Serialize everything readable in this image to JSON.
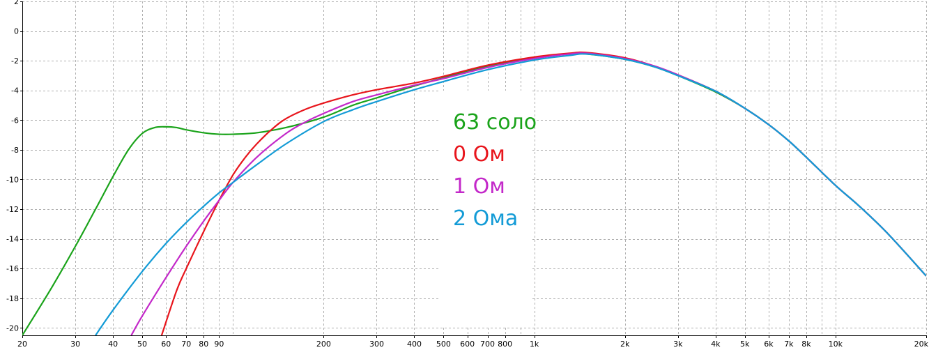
{
  "chart_data": {
    "type": "line",
    "title": "",
    "xlabel": "",
    "ylabel": "",
    "x_scale": "log",
    "xlim": [
      20,
      20000
    ],
    "ylim": [
      -20.5,
      2
    ],
    "grid": true,
    "legend_placement": "center",
    "x_ticks": [
      {
        "value": 20,
        "label": "20"
      },
      {
        "value": 30,
        "label": "30"
      },
      {
        "value": 40,
        "label": "40"
      },
      {
        "value": 50,
        "label": "50"
      },
      {
        "value": 60,
        "label": "60"
      },
      {
        "value": 70,
        "label": "70"
      },
      {
        "value": 80,
        "label": "80"
      },
      {
        "value": 90,
        "label": "90"
      },
      {
        "value": 200,
        "label": "200"
      },
      {
        "value": 300,
        "label": "300"
      },
      {
        "value": 400,
        "label": "400"
      },
      {
        "value": 500,
        "label": "500"
      },
      {
        "value": 600,
        "label": "600"
      },
      {
        "value": 700,
        "label": "700"
      },
      {
        "value": 800,
        "label": "800"
      },
      {
        "value": 1000,
        "label": "1k"
      },
      {
        "value": 2000,
        "label": "2k"
      },
      {
        "value": 3000,
        "label": "3k"
      },
      {
        "value": 4000,
        "label": "4k"
      },
      {
        "value": 5000,
        "label": "5k"
      },
      {
        "value": 6000,
        "label": "6k"
      },
      {
        "value": 7000,
        "label": "7k"
      },
      {
        "value": 8000,
        "label": "8k"
      },
      {
        "value": 10000,
        "label": "10k"
      },
      {
        "value": 20000,
        "label": "20k"
      }
    ],
    "x_gridlines": [
      20,
      30,
      40,
      50,
      60,
      70,
      80,
      90,
      100,
      200,
      300,
      400,
      500,
      600,
      700,
      800,
      900,
      1000,
      2000,
      3000,
      4000,
      5000,
      6000,
      7000,
      8000,
      9000,
      10000,
      20000
    ],
    "y_ticks": [
      {
        "value": 2,
        "label": "2"
      },
      {
        "value": 0,
        "label": "0"
      },
      {
        "value": -2,
        "label": "-2"
      },
      {
        "value": -4,
        "label": "-4"
      },
      {
        "value": -6,
        "label": "-6"
      },
      {
        "value": -8,
        "label": "-8"
      },
      {
        "value": -10,
        "label": "-10"
      },
      {
        "value": -12,
        "label": "-12"
      },
      {
        "value": -14,
        "label": "-14"
      },
      {
        "value": -16,
        "label": "-16"
      },
      {
        "value": -18,
        "label": "-18"
      },
      {
        "value": -20,
        "label": "-20"
      }
    ],
    "series": [
      {
        "name": "63 соло",
        "color": "#1aa31a",
        "points": [
          [
            20,
            -20.5
          ],
          [
            25,
            -17.3
          ],
          [
            30,
            -14.5
          ],
          [
            35,
            -12
          ],
          [
            40,
            -9.8
          ],
          [
            45,
            -8
          ],
          [
            50,
            -6.9
          ],
          [
            55,
            -6.5
          ],
          [
            60,
            -6.45
          ],
          [
            65,
            -6.5
          ],
          [
            70,
            -6.65
          ],
          [
            80,
            -6.85
          ],
          [
            90,
            -6.95
          ],
          [
            100,
            -6.95
          ],
          [
            120,
            -6.85
          ],
          [
            150,
            -6.5
          ],
          [
            200,
            -5.8
          ],
          [
            250,
            -5.0
          ],
          [
            300,
            -4.5
          ],
          [
            400,
            -3.7
          ],
          [
            500,
            -3.15
          ],
          [
            700,
            -2.35
          ],
          [
            1000,
            -1.8
          ],
          [
            1300,
            -1.55
          ],
          [
            1500,
            -1.55
          ],
          [
            2000,
            -1.9
          ],
          [
            2500,
            -2.4
          ],
          [
            3000,
            -3.0
          ],
          [
            4000,
            -4.1
          ],
          [
            5000,
            -5.2
          ],
          [
            6000,
            -6.3
          ],
          [
            7000,
            -7.4
          ],
          [
            8000,
            -8.5
          ],
          [
            10000,
            -10.4
          ],
          [
            12000,
            -11.8
          ],
          [
            15000,
            -13.7
          ],
          [
            20000,
            -16.5
          ]
        ]
      },
      {
        "name": "0 Ом",
        "color": "#e8151c",
        "points": [
          [
            58,
            -20.5
          ],
          [
            65,
            -17.5
          ],
          [
            70,
            -16
          ],
          [
            80,
            -13.5
          ],
          [
            90,
            -11.4
          ],
          [
            100,
            -9.7
          ],
          [
            110,
            -8.5
          ],
          [
            120,
            -7.6
          ],
          [
            135,
            -6.6
          ],
          [
            150,
            -5.9
          ],
          [
            175,
            -5.25
          ],
          [
            200,
            -4.85
          ],
          [
            250,
            -4.3
          ],
          [
            300,
            -3.95
          ],
          [
            400,
            -3.5
          ],
          [
            500,
            -3.05
          ],
          [
            700,
            -2.3
          ],
          [
            1000,
            -1.75
          ],
          [
            1300,
            -1.5
          ],
          [
            1500,
            -1.45
          ],
          [
            2000,
            -1.8
          ],
          [
            2500,
            -2.35
          ],
          [
            3000,
            -2.95
          ],
          [
            4000,
            -4.05
          ],
          [
            5000,
            -5.2
          ],
          [
            6000,
            -6.3
          ],
          [
            7000,
            -7.4
          ],
          [
            8000,
            -8.5
          ],
          [
            10000,
            -10.4
          ],
          [
            12000,
            -11.8
          ],
          [
            15000,
            -13.7
          ],
          [
            20000,
            -16.5
          ]
        ]
      },
      {
        "name": "1 Ом",
        "color": "#c328c9",
        "points": [
          [
            46,
            -20.5
          ],
          [
            50,
            -19.2
          ],
          [
            60,
            -16.6
          ],
          [
            70,
            -14.5
          ],
          [
            80,
            -12.8
          ],
          [
            90,
            -11.4
          ],
          [
            100,
            -10.2
          ],
          [
            120,
            -8.5
          ],
          [
            150,
            -6.9
          ],
          [
            175,
            -6.1
          ],
          [
            200,
            -5.55
          ],
          [
            250,
            -4.75
          ],
          [
            300,
            -4.3
          ],
          [
            400,
            -3.65
          ],
          [
            500,
            -3.2
          ],
          [
            700,
            -2.45
          ],
          [
            1000,
            -1.85
          ],
          [
            1300,
            -1.55
          ],
          [
            1500,
            -1.5
          ],
          [
            2000,
            -1.85
          ],
          [
            2500,
            -2.35
          ],
          [
            3000,
            -2.95
          ],
          [
            4000,
            -4.05
          ],
          [
            5000,
            -5.2
          ],
          [
            6000,
            -6.3
          ],
          [
            7000,
            -7.4
          ],
          [
            8000,
            -8.5
          ],
          [
            10000,
            -10.4
          ],
          [
            12000,
            -11.8
          ],
          [
            15000,
            -13.7
          ],
          [
            20000,
            -16.5
          ]
        ]
      },
      {
        "name": "2 Ома",
        "color": "#139bd6",
        "points": [
          [
            35,
            -20.5
          ],
          [
            40,
            -18.8
          ],
          [
            50,
            -16.2
          ],
          [
            60,
            -14.3
          ],
          [
            70,
            -12.9
          ],
          [
            80,
            -11.8
          ],
          [
            90,
            -10.9
          ],
          [
            100,
            -10.2
          ],
          [
            120,
            -9.0
          ],
          [
            150,
            -7.6
          ],
          [
            200,
            -6.1
          ],
          [
            250,
            -5.3
          ],
          [
            300,
            -4.75
          ],
          [
            400,
            -3.95
          ],
          [
            500,
            -3.4
          ],
          [
            700,
            -2.6
          ],
          [
            1000,
            -1.95
          ],
          [
            1300,
            -1.65
          ],
          [
            1500,
            -1.55
          ],
          [
            2000,
            -1.9
          ],
          [
            2500,
            -2.4
          ],
          [
            3000,
            -3.0
          ],
          [
            4000,
            -4.05
          ],
          [
            5000,
            -5.2
          ],
          [
            6000,
            -6.3
          ],
          [
            7000,
            -7.4
          ],
          [
            8000,
            -8.5
          ],
          [
            10000,
            -10.4
          ],
          [
            12000,
            -11.8
          ],
          [
            15000,
            -13.7
          ],
          [
            20000,
            -16.5
          ]
        ]
      }
    ]
  }
}
